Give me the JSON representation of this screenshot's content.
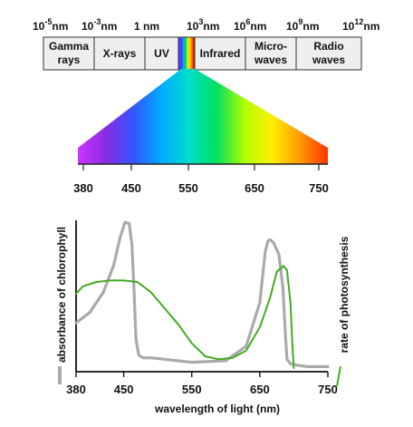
{
  "em_spectrum": {
    "scale_labels": [
      {
        "base": "10",
        "exp": "-5",
        "unit": "nm"
      },
      {
        "base": "10",
        "exp": "-3",
        "unit": "nm"
      },
      {
        "base": "",
        "exp": "",
        "unit": "1 nm"
      },
      {
        "base": "10",
        "exp": "3",
        "unit": "nm"
      },
      {
        "base": "10",
        "exp": "6",
        "unit": "nm"
      },
      {
        "base": "10",
        "exp": "9",
        "unit": "nm"
      },
      {
        "base": "10",
        "exp": "12",
        "unit": "nm"
      }
    ],
    "bands": [
      {
        "lines": [
          "Gamma",
          "rays"
        ]
      },
      {
        "lines": [
          "X-rays"
        ]
      },
      {
        "lines": [
          "UV"
        ]
      },
      {
        "lines": [],
        "is_visible": true
      },
      {
        "lines": [
          "Infrared"
        ]
      },
      {
        "lines": [
          "Micro-",
          "waves"
        ]
      },
      {
        "lines": [
          "Radio",
          "waves"
        ]
      }
    ]
  },
  "visible_band": {
    "ticks": [
      "380",
      "450",
      "550",
      "650",
      "750"
    ],
    "colors": [
      "#cc33ff",
      "#8a2be2",
      "#3355ff",
      "#00aaff",
      "#00ddcc",
      "#00e060",
      "#b0ff00",
      "#ffee00",
      "#ff9900",
      "#ff3300"
    ]
  },
  "chart": {
    "xlabel": "wavelength of light (nm)",
    "ylabel_left": "absorbance of chlorophyll",
    "ylabel_right": "rate of photosynthesis",
    "x_ticks": [
      "380",
      "450",
      "550",
      "650",
      "750"
    ]
  },
  "chart_data": {
    "type": "line",
    "xlabel": "wavelength of light (nm)",
    "ylabel": "absorbance of chlorophyll",
    "y2label": "rate of photosynthesis",
    "xlim": [
      380,
      750
    ],
    "ylim": [
      0,
      1
    ],
    "series": [
      {
        "name": "absorbance of chlorophyll",
        "color": "#aaaaaa",
        "x": [
          380,
          400,
          420,
          435,
          445,
          452,
          458,
          462,
          465,
          468,
          472,
          478,
          490,
          510,
          550,
          600,
          630,
          650,
          658,
          662,
          665,
          670,
          678,
          684,
          688,
          690,
          695,
          705,
          720,
          750
        ],
        "y": [
          0.31,
          0.38,
          0.52,
          0.7,
          0.9,
          1.0,
          0.99,
          0.85,
          0.55,
          0.2,
          0.09,
          0.07,
          0.07,
          0.06,
          0.04,
          0.05,
          0.15,
          0.45,
          0.8,
          0.87,
          0.88,
          0.86,
          0.78,
          0.55,
          0.2,
          0.06,
          0.03,
          0.02,
          0.01,
          0.01
        ]
      },
      {
        "name": "rate of photosynthesis",
        "color": "#44aa22",
        "x": [
          380,
          390,
          410,
          430,
          450,
          470,
          490,
          510,
          530,
          550,
          570,
          590,
          610,
          630,
          650,
          665,
          675,
          685,
          690,
          695,
          698,
          700
        ],
        "y": [
          0.51,
          0.56,
          0.59,
          0.6,
          0.6,
          0.59,
          0.52,
          0.41,
          0.3,
          0.17,
          0.08,
          0.06,
          0.07,
          0.12,
          0.28,
          0.48,
          0.66,
          0.7,
          0.67,
          0.45,
          0.15,
          0.0
        ]
      }
    ]
  }
}
